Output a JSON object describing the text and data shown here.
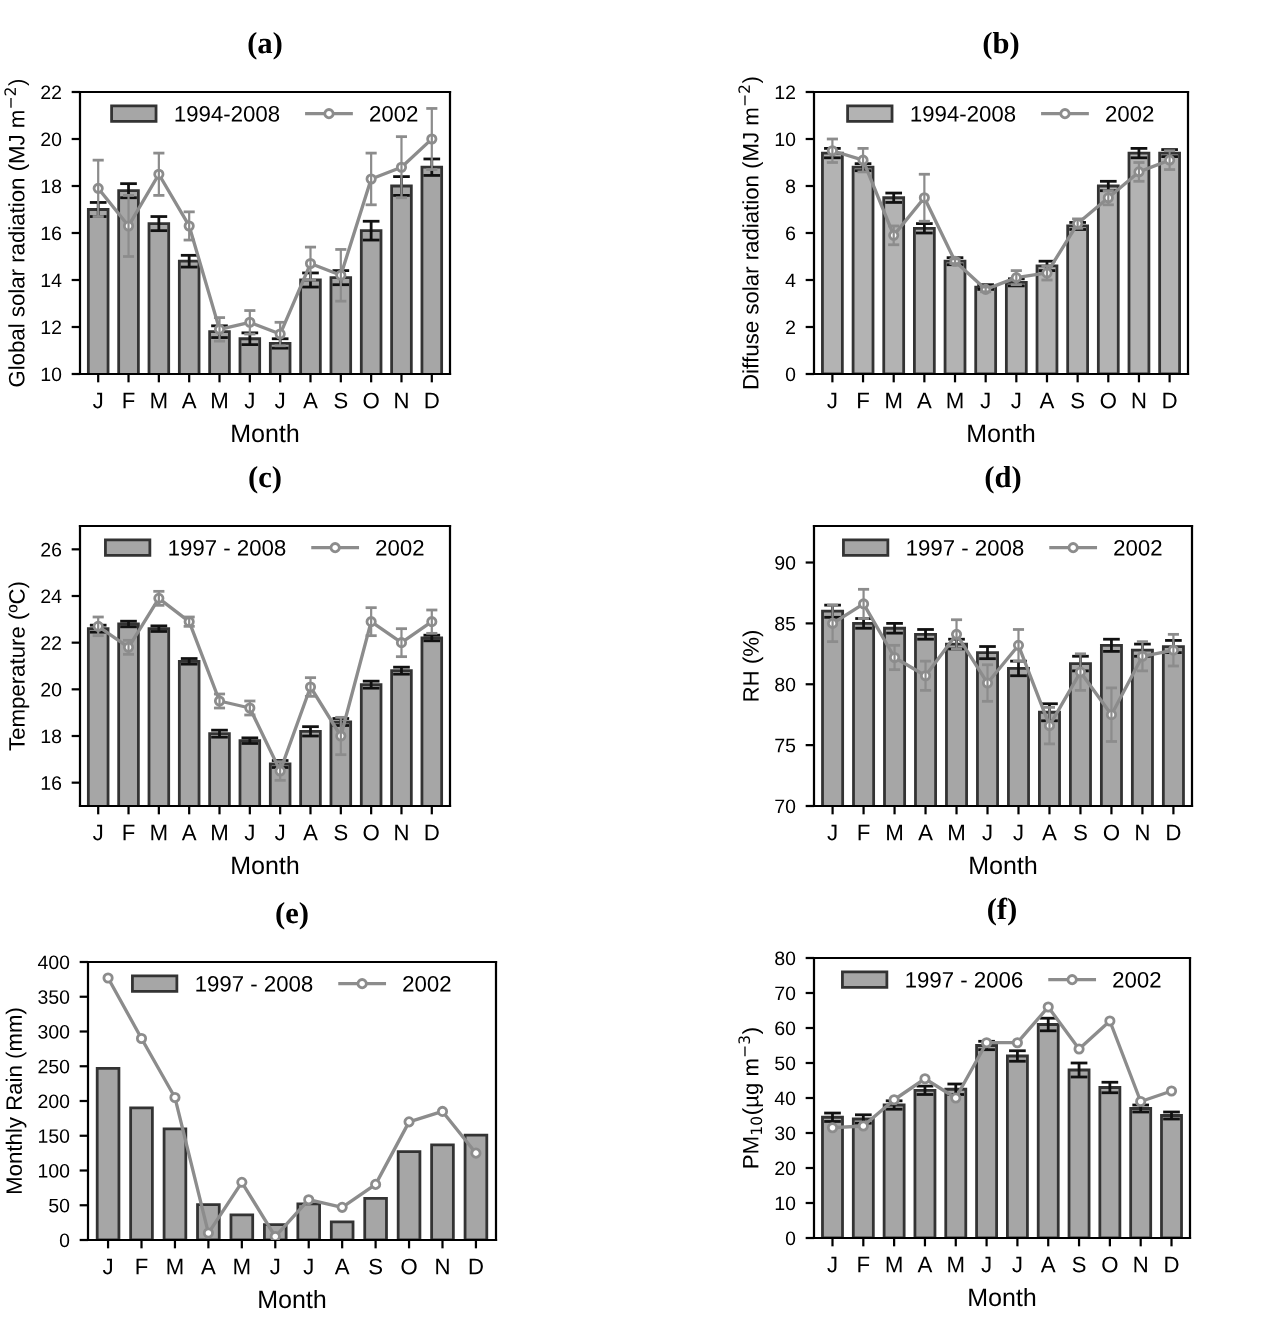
{
  "chart_data": [
    {
      "type": "bar",
      "title": "(a)",
      "xlabel": "Month",
      "ylabel": "Global solar radiation (MJ m$^{−2}$)",
      "categories": [
        "J",
        "F",
        "M",
        "A",
        "M",
        "J",
        "J",
        "A",
        "S",
        "O",
        "N",
        "D"
      ],
      "ylim": [
        10,
        22
      ],
      "yticks": [
        10,
        12,
        14,
        16,
        18,
        20,
        22
      ],
      "legend": "top",
      "grid": false,
      "series": [
        {
          "name": "1994-2008",
          "color": "#a6a6a6",
          "values": [
            17.0,
            17.8,
            16.4,
            14.8,
            11.8,
            11.5,
            11.3,
            14.0,
            14.1,
            16.1,
            18.0,
            18.8
          ],
          "errors": [
            0.3,
            0.3,
            0.3,
            0.25,
            0.25,
            0.25,
            0.2,
            0.3,
            0.3,
            0.4,
            0.4,
            0.35
          ]
        },
        {
          "name": "2002",
          "type": "line",
          "color": "#8c8c8c",
          "marker": "circle",
          "values": [
            17.9,
            16.3,
            18.5,
            16.3,
            11.9,
            12.2,
            11.7,
            14.7,
            14.2,
            18.3,
            18.8,
            20.0
          ],
          "errors": [
            1.2,
            1.3,
            0.9,
            0.6,
            0.5,
            0.5,
            0.5,
            0.7,
            1.1,
            1.1,
            1.3,
            1.3
          ]
        }
      ]
    },
    {
      "type": "bar",
      "title": "(b)",
      "xlabel": "Month",
      "ylabel": "Diffuse solar radiation (MJ m$^{−2}$)",
      "categories": [
        "J",
        "F",
        "M",
        "A",
        "M",
        "J",
        "J",
        "A",
        "S",
        "O",
        "N",
        "D"
      ],
      "ylim": [
        0,
        12
      ],
      "yticks": [
        0,
        2,
        4,
        6,
        8,
        10,
        12
      ],
      "legend": "top",
      "grid": false,
      "series": [
        {
          "name": "1994-2008",
          "color": "#b3b3b3",
          "values": [
            9.4,
            8.8,
            7.5,
            6.2,
            4.8,
            3.7,
            3.9,
            4.6,
            6.3,
            8.0,
            9.4,
            9.4
          ],
          "errors": [
            0.2,
            0.15,
            0.2,
            0.2,
            0.15,
            0.1,
            0.15,
            0.2,
            0.15,
            0.2,
            0.2,
            0.15
          ]
        },
        {
          "name": "2002",
          "type": "line",
          "color": "#8c8c8c",
          "marker": "circle",
          "values": [
            9.5,
            9.1,
            5.9,
            7.5,
            4.8,
            3.6,
            4.1,
            4.3,
            6.4,
            7.5,
            8.6,
            9.1
          ],
          "errors": [
            0.5,
            0.5,
            0.4,
            1.0,
            0.1,
            0.1,
            0.3,
            0.3,
            0.2,
            0.3,
            0.4,
            0.4
          ]
        }
      ]
    },
    {
      "type": "bar",
      "title": "(c)",
      "xlabel": "Month",
      "ylabel": "Temperature (ºC)",
      "categories": [
        "J",
        "F",
        "M",
        "A",
        "M",
        "J",
        "J",
        "A",
        "S",
        "O",
        "N",
        "D"
      ],
      "ylim": [
        15,
        27
      ],
      "yticks": [
        16,
        18,
        20,
        22,
        24,
        26
      ],
      "legend": "top",
      "grid": false,
      "series": [
        {
          "name": "1997 - 2008",
          "color": "#a6a6a6",
          "values": [
            22.6,
            22.8,
            22.6,
            21.2,
            18.1,
            17.8,
            16.8,
            18.2,
            18.6,
            20.2,
            20.8,
            22.2
          ],
          "errors": [
            0.15,
            0.12,
            0.12,
            0.12,
            0.15,
            0.12,
            0.15,
            0.2,
            0.15,
            0.15,
            0.15,
            0.12
          ]
        },
        {
          "name": "2002",
          "type": "line",
          "color": "#8c8c8c",
          "marker": "circle",
          "values": [
            22.7,
            21.8,
            23.9,
            22.9,
            19.5,
            19.2,
            16.5,
            20.1,
            18.0,
            22.9,
            22.0,
            22.9
          ],
          "errors": [
            0.4,
            0.3,
            0.3,
            0.2,
            0.3,
            0.3,
            0.4,
            0.4,
            0.8,
            0.6,
            0.6,
            0.5
          ]
        }
      ]
    },
    {
      "type": "bar",
      "title": "(d)",
      "xlabel": "Month",
      "ylabel": "RH (%)",
      "categories": [
        "J",
        "F",
        "M",
        "A",
        "M",
        "J",
        "J",
        "A",
        "S",
        "O",
        "N",
        "D"
      ],
      "ylim": [
        70,
        93
      ],
      "yticks": [
        70,
        75,
        80,
        85,
        90
      ],
      "legend": "top",
      "grid": false,
      "series": [
        {
          "name": "1997 - 2008",
          "color": "#a6a6a6",
          "values": [
            86.0,
            85.0,
            84.6,
            84.1,
            83.3,
            82.6,
            81.3,
            77.7,
            81.7,
            83.2,
            82.8,
            83.1
          ],
          "errors": [
            0.5,
            0.4,
            0.4,
            0.4,
            0.4,
            0.5,
            0.6,
            0.7,
            0.6,
            0.5,
            0.5,
            0.5
          ]
        },
        {
          "name": "2002",
          "type": "line",
          "color": "#8c8c8c",
          "marker": "circle",
          "values": [
            85.0,
            86.6,
            82.2,
            80.7,
            84.1,
            80.1,
            83.2,
            76.6,
            81.0,
            77.5,
            82.3,
            82.8
          ],
          "errors": [
            1.5,
            1.2,
            1.0,
            1.2,
            1.2,
            1.5,
            1.3,
            1.5,
            1.5,
            2.2,
            1.2,
            1.3
          ]
        }
      ]
    },
    {
      "type": "bar",
      "title": "(e)",
      "xlabel": "Month",
      "ylabel": "Monthly Rain (mm)",
      "categories": [
        "J",
        "F",
        "M",
        "A",
        "M",
        "J",
        "J",
        "A",
        "S",
        "O",
        "N",
        "D"
      ],
      "ylim": [
        0,
        400
      ],
      "yticks": [
        0,
        50,
        100,
        150,
        200,
        250,
        300,
        350,
        400
      ],
      "legend": "top",
      "grid": false,
      "series": [
        {
          "name": "1997 - 2008",
          "color": "#a6a6a6",
          "values": [
            247,
            190,
            160,
            51,
            36,
            22,
            52,
            26,
            60,
            127,
            137,
            151
          ]
        },
        {
          "name": "2002",
          "type": "line",
          "color": "#8c8c8c",
          "marker": "circle",
          "values": [
            377,
            290,
            205,
            10,
            83,
            5,
            58,
            47,
            80,
            170,
            185,
            125
          ]
        }
      ]
    },
    {
      "type": "bar",
      "title": "(f)",
      "xlabel": "Month",
      "ylabel": "PM$_{10}$(µg m$^{−3}$)",
      "categories": [
        "J",
        "F",
        "M",
        "A",
        "M",
        "J",
        "J",
        "A",
        "S",
        "O",
        "N",
        "D"
      ],
      "ylim": [
        0,
        80
      ],
      "yticks": [
        0,
        10,
        20,
        30,
        40,
        50,
        60,
        70,
        80
      ],
      "legend": "top",
      "grid": false,
      "series": [
        {
          "name": "1997 - 2006",
          "color": "#a6a6a6",
          "values": [
            34.5,
            34,
            38,
            42.2,
            42.5,
            55,
            52,
            61,
            48,
            43,
            37,
            35
          ],
          "errors": [
            1.2,
            1.2,
            1.2,
            1.2,
            1.5,
            1.2,
            1.5,
            1.8,
            2.0,
            1.5,
            1.0,
            1.0
          ]
        },
        {
          "name": "2002",
          "type": "line",
          "color": "#8c8c8c",
          "marker": "circle",
          "values": [
            31.5,
            32,
            39.5,
            45.5,
            40,
            55.8,
            55.8,
            66,
            54,
            62,
            39,
            42
          ]
        }
      ]
    }
  ]
}
